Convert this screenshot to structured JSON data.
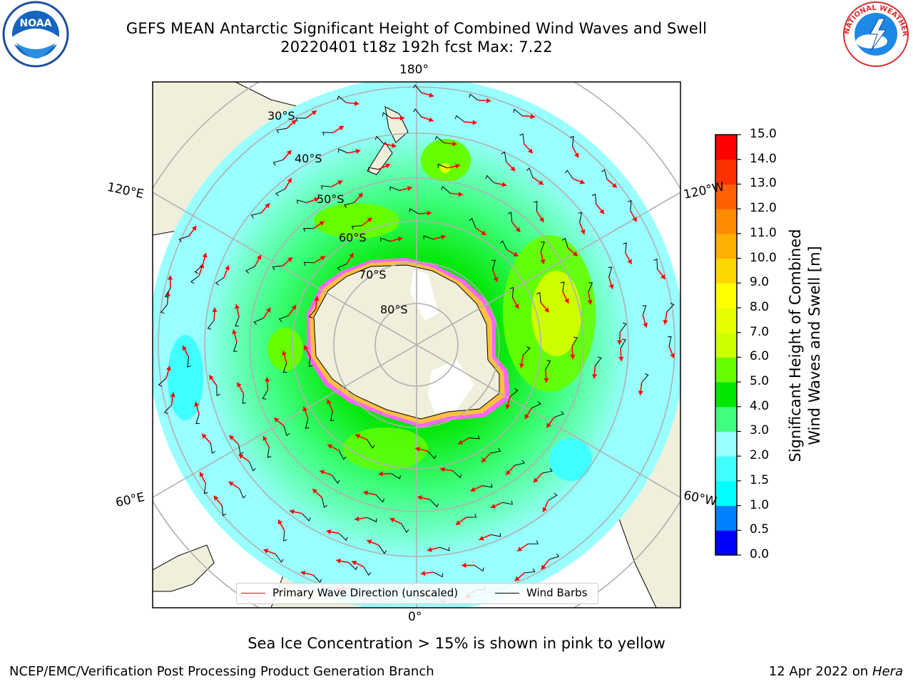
{
  "header": {
    "title_line1": "GEFS MEAN Antarctic Significant Height of Combined Wind Waves and Swell",
    "title_line2": "20220401 t18z 192h fcst   Max: 7.22"
  },
  "logos": {
    "left": "noaa-logo",
    "left_text": "NOAA",
    "right": "nws-logo",
    "right_text": "NATIONAL WEATHER SERVICE"
  },
  "map": {
    "lon_labels": {
      "top": "180°",
      "bottom": "0°",
      "upper_left": "120°E",
      "upper_right": "120°W",
      "lower_left": "60°E",
      "lower_right": "60°W"
    },
    "lat_labels": [
      "30°S",
      "40°S",
      "50°S",
      "60°S",
      "70°S",
      "80°S"
    ],
    "legend": {
      "wave": "Primary Wave Direction (unscaled)",
      "wind": "Wind Barbs",
      "wave_color": "#ff0000",
      "wind_color": "#000000"
    }
  },
  "colorbar": {
    "label_line1": "Significant Height of Combined",
    "label_line2": "Wind Waves and Swell [m]",
    "ticks": [
      "0.0",
      "0.5",
      "1.0",
      "1.5",
      "2.0",
      "3.0",
      "4.0",
      "5.0",
      "6.0",
      "7.0",
      "8.0",
      "9.0",
      "10.0",
      "11.0",
      "12.0",
      "13.0",
      "14.0",
      "15.0"
    ],
    "colors": [
      "#0000ff",
      "#0080ff",
      "#00ffff",
      "#40ffff",
      "#99ffff",
      "#40ff80",
      "#00e600",
      "#66ff00",
      "#ccff00",
      "#e6ff00",
      "#ffff00",
      "#ffd700",
      "#ffb000",
      "#ff8c00",
      "#ff6000",
      "#ff3000",
      "#ff0000"
    ]
  },
  "subtitle": "Sea Ice Concentration > 15% is shown in pink to yellow",
  "footer": {
    "left": "NCEP/EMC/Verification Post Processing Product Generation Branch",
    "right_date": "12 Apr 2022 on ",
    "right_host": "Hera"
  }
}
